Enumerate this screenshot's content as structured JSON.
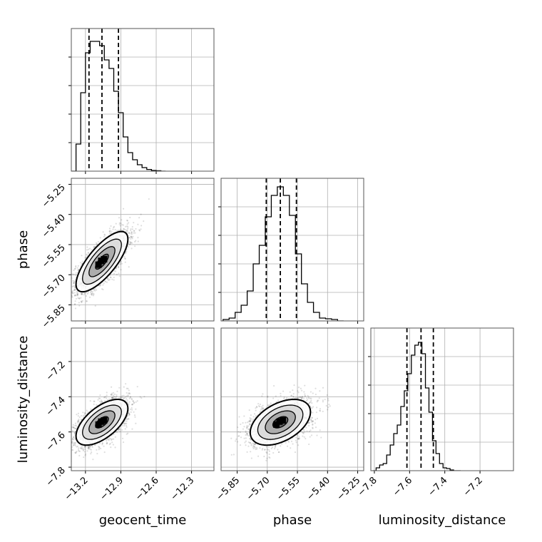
{
  "chart_data": {
    "type": "corner",
    "grid": true,
    "parameters": [
      "geocent_time",
      "phase",
      "luminosity_distance"
    ],
    "axis_labels": {
      "x": [
        "geocent_time",
        "phase",
        "luminosity_distance"
      ],
      "y": [
        "phase",
        "luminosity_distance"
      ]
    },
    "ranges": {
      "geocent_time": [
        -13.32,
        -12.11
      ],
      "phase": [
        -5.93,
        -5.22
      ],
      "luminosity_distance": [
        -7.82,
        -7.01
      ]
    },
    "ticks": {
      "geocent_time": [
        -13.2,
        -12.9,
        -12.6,
        -12.3
      ],
      "phase": [
        -5.85,
        -5.7,
        -5.55,
        -5.4,
        -5.25
      ],
      "luminosity_distance": [
        -7.8,
        -7.6,
        -7.4,
        -7.2
      ]
    },
    "tick_labels": {
      "geocent_time": [
        "−13.2",
        "−12.9",
        "−12.6",
        "−12.3"
      ],
      "phase": [
        "−5.85",
        "−5.70",
        "−5.55",
        "−5.40",
        "−5.25"
      ],
      "luminosity_distance": [
        "−7.8",
        "−7.6",
        "−7.4",
        "−7.2"
      ]
    },
    "quantiles": {
      "geocent_time": [
        -13.17,
        -13.06,
        -12.92
      ],
      "phase": [
        -5.705,
        -5.635,
        -5.555
      ],
      "luminosity_distance": [
        -7.615,
        -7.535,
        -7.465
      ]
    },
    "histograms": {
      "geocent_time": {
        "edges": [
          -13.32,
          -13.28,
          -13.24,
          -13.2,
          -13.16,
          -13.12,
          -13.08,
          -13.04,
          -13.0,
          -12.96,
          -12.92,
          -12.88,
          -12.84,
          -12.8,
          -12.76,
          -12.72,
          -12.68,
          -12.64,
          -12.6,
          -12.56,
          -12.52
        ],
        "counts": [
          0.0,
          0.19,
          0.55,
          0.83,
          0.91,
          0.91,
          0.88,
          0.78,
          0.72,
          0.56,
          0.41,
          0.24,
          0.13,
          0.08,
          0.045,
          0.025,
          0.012,
          0.005,
          0.003,
          0.0
        ]
      },
      "phase": {
        "edges": [
          -5.92,
          -5.89,
          -5.86,
          -5.83,
          -5.8,
          -5.77,
          -5.74,
          -5.71,
          -5.68,
          -5.65,
          -5.62,
          -5.59,
          -5.56,
          -5.53,
          -5.5,
          -5.47,
          -5.44,
          -5.41,
          -5.38,
          -5.35,
          -5.32
        ],
        "counts": [
          0.01,
          0.02,
          0.06,
          0.11,
          0.21,
          0.4,
          0.53,
          0.73,
          0.88,
          0.94,
          0.88,
          0.74,
          0.47,
          0.26,
          0.13,
          0.06,
          0.02,
          0.015,
          0.01,
          0.0
        ]
      },
      "luminosity_distance": {
        "edges": [
          -7.81,
          -7.79,
          -7.77,
          -7.75,
          -7.73,
          -7.71,
          -7.69,
          -7.67,
          -7.65,
          -7.63,
          -7.61,
          -7.59,
          -7.57,
          -7.55,
          -7.53,
          -7.51,
          -7.49,
          -7.47,
          -7.45,
          -7.43,
          -7.41,
          -7.39,
          -7.37,
          -7.35,
          -7.33,
          -7.31
        ],
        "counts": [
          0.0,
          0.02,
          0.04,
          0.05,
          0.11,
          0.18,
          0.26,
          0.32,
          0.45,
          0.56,
          0.68,
          0.81,
          0.88,
          0.9,
          0.82,
          0.58,
          0.41,
          0.21,
          0.12,
          0.05,
          0.02,
          0.015,
          0.005,
          0.0,
          0.0
        ]
      }
    },
    "posterior_2d": {
      "phase_vs_geocent_time": {
        "mean": [
          -13.06,
          -5.635
        ],
        "sd": [
          0.11,
          0.075
        ],
        "corr": 0.75
      },
      "luminosity_distance_vs_geocent_time": {
        "mean": [
          -13.06,
          -7.545
        ],
        "sd": [
          0.11,
          0.065
        ],
        "corr": 0.6
      },
      "luminosity_distance_vs_phase": {
        "mean": [
          -5.635,
          -7.545
        ],
        "sd": [
          0.075,
          0.065
        ],
        "corr": 0.45
      }
    },
    "contour_levels_sigma": [
      0.5,
      1.0,
      1.5,
      2.0
    ]
  }
}
